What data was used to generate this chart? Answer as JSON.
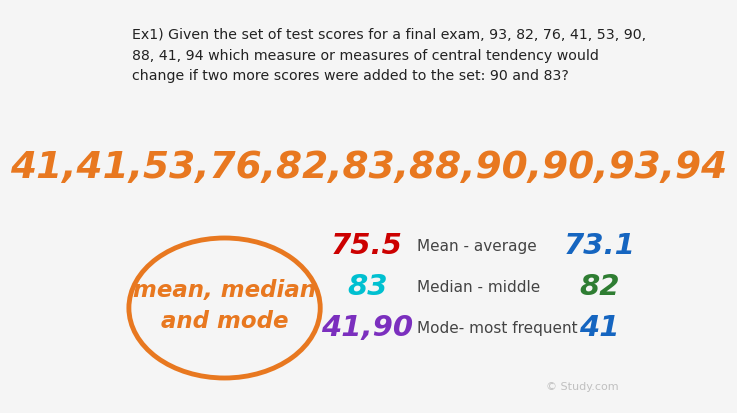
{
  "bg_color": "#f5f5f5",
  "question_text": "Ex1) Given the set of test scores for a final exam, 93, 82, 76, 41, 53, 90,\n88, 41, 94 which measure or measures of central tendency would\nchange if two more scores were added to the set: 90 and 83?",
  "sorted_scores": "41,41,53,76,82,83,88,90,90,93,94",
  "sorted_color": "#E87820",
  "bubble_text_line1": "mean, median",
  "bubble_text_line2": "and mode",
  "bubble_color": "#E87820",
  "before_mean_label": "Mean - average",
  "before_median_label": "Median - middle",
  "before_mode_label": "Mode- most frequent",
  "before_mean_val": "75.5",
  "before_median_val": "83",
  "before_mode_val": "41,90",
  "before_mean_color": "#cc0000",
  "before_median_color": "#00c0d0",
  "before_mode_color": "#7b2fbe",
  "after_mean_val": "73.1",
  "after_median_val": "82",
  "after_mode_val": "41",
  "after_mean_color": "#1565c0",
  "after_median_color": "#2e7d32",
  "after_mode_color": "#1565c0",
  "watermark": "© Study.com",
  "label_color": "#444444"
}
